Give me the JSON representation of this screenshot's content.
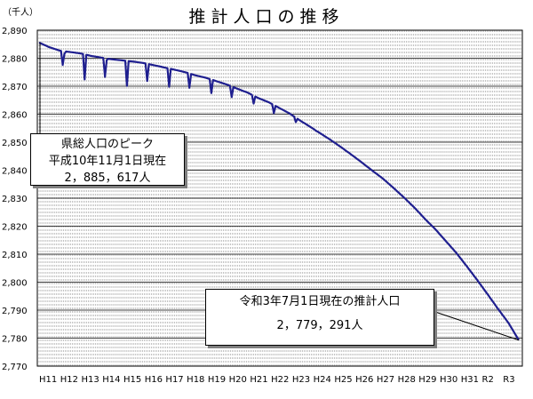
{
  "chart_data": {
    "type": "line",
    "title": "推計人口の推移",
    "y_unit_label": "（千人）",
    "ylim": [
      2770,
      2890
    ],
    "y_ticks": [
      2770,
      2780,
      2790,
      2800,
      2810,
      2820,
      2830,
      2840,
      2850,
      2860,
      2870,
      2880,
      2890
    ],
    "x_ticks": [
      "H11",
      "H12",
      "H13",
      "H14",
      "H15",
      "H16",
      "H17",
      "H18",
      "H19",
      "H20",
      "H21",
      "H22",
      "H23",
      "H24",
      "H25",
      "H26",
      "H27",
      "H28",
      "H29",
      "H30",
      "H31",
      "R2",
      "R3"
    ],
    "grid": true,
    "line_color": "#1f1f8f",
    "annual_dips": [
      2874,
      2872,
      2870,
      2867,
      2867,
      2867,
      2867,
      2866,
      2865,
      2864,
      2862,
      2859,
      2856,
      2854,
      2852,
      2849,
      2847,
      2843,
      2837,
      2829,
      2821,
      2810,
      2800
    ],
    "series_values": [
      2885.6,
      2883.9,
      2882.7,
      2882.2,
      2881.7,
      2880.8,
      2880.2,
      2879.6,
      2879.2,
      2878.8,
      2878.3,
      2877.5,
      2876.7,
      2875.9,
      2875.0,
      2873.9,
      2873.0,
      2871.8,
      2870.6,
      2869.1,
      2867.7,
      2865.8,
      2864.3,
      2862.3,
      2860.3,
      2857.8,
      2855.5,
      2853.1,
      2850.7,
      2848.1,
      2845.4,
      2842.6,
      2839.7,
      2836.9,
      2833.6,
      2830.2,
      2826.6,
      2822.6,
      2818.9,
      2814.7,
      2810.5,
      2805.7,
      2800.8,
      2795.7,
      2790.5,
      2785.5,
      2779.3
    ]
  },
  "annotations": {
    "peak": {
      "line1": "県総人口のピーク",
      "line2": "平成10年11月1日現在",
      "line3": "2，885，617人",
      "value": 2885.617
    },
    "current": {
      "line1": "令和3年7月1日現在の推計人口",
      "line2": "2，779，291人",
      "value": 2779.291
    }
  }
}
